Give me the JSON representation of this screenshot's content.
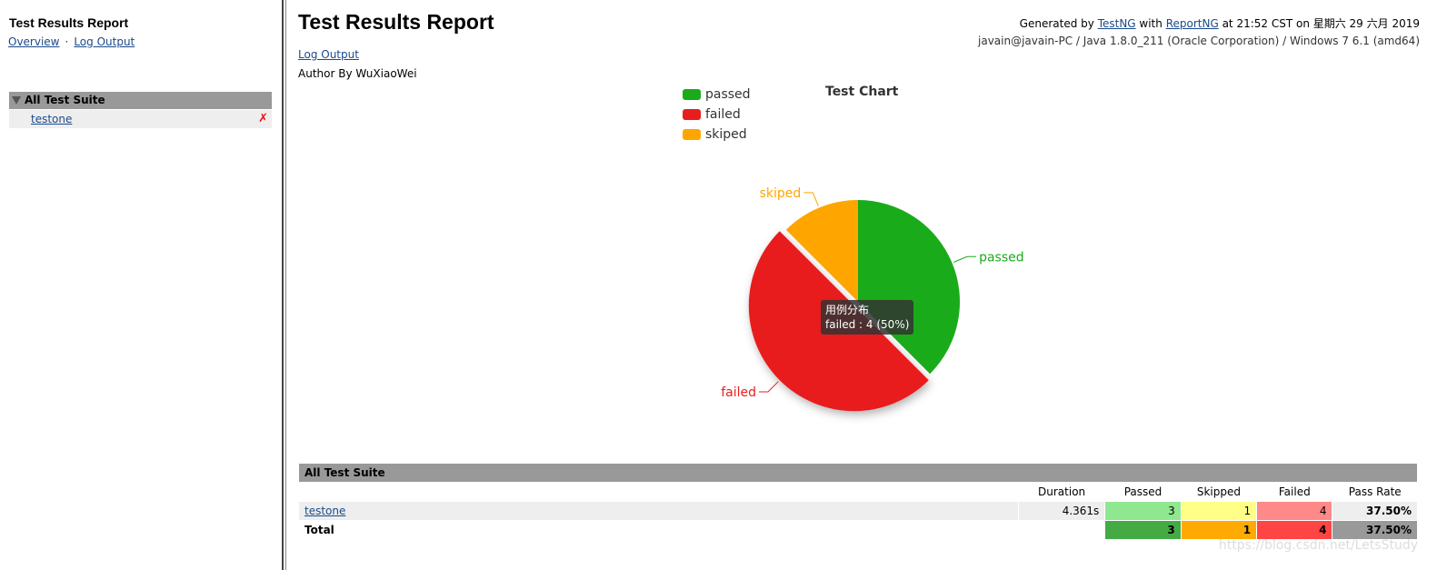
{
  "sidebar": {
    "title": "Test Results Report",
    "nav": [
      "Overview",
      "Log Output"
    ],
    "suite_header": "All Test Suite",
    "suite_item": "testone",
    "suite_item_status": "✗"
  },
  "header": {
    "title": "Test Results Report",
    "gen_prefix": "Generated by ",
    "gen_tool1": "TestNG",
    "gen_with": " with ",
    "gen_tool2": "ReportNG",
    "gen_suffix": " at 21:52 CST on 星期六 29 六月 2019",
    "system_info": "javain@javain-PC / Java 1.8.0_211 (Oracle Corporation) / Windows 7 6.1 (amd64)",
    "log_link": "Log Output",
    "author": "Author By WuXiaoWei"
  },
  "chart_data": {
    "type": "pie",
    "title": "Test Chart",
    "legend_placement": "top-left",
    "series_name": "用例分布",
    "slices": [
      {
        "name": "passed",
        "value": 3,
        "color": "#1aab1a"
      },
      {
        "name": "failed",
        "value": 4,
        "color": "#e81e1e"
      },
      {
        "name": "skiped",
        "value": 1,
        "color": "#ffa500"
      }
    ],
    "tooltip": {
      "series": "用例分布",
      "text": "failed : 4 (50%)"
    }
  },
  "table": {
    "suite_header": "All Test Suite",
    "columns": [
      "Duration",
      "Passed",
      "Skipped",
      "Failed",
      "Pass Rate"
    ],
    "rows": [
      {
        "name": "testone",
        "duration": "4.361s",
        "passed": "3",
        "skipped": "1",
        "failed": "4",
        "pass_rate": "37.50%"
      }
    ],
    "total": {
      "label": "Total",
      "passed": "3",
      "skipped": "1",
      "failed": "4",
      "pass_rate": "37.50%"
    }
  },
  "watermark": "https://blog.csdn.net/LetsStudy"
}
